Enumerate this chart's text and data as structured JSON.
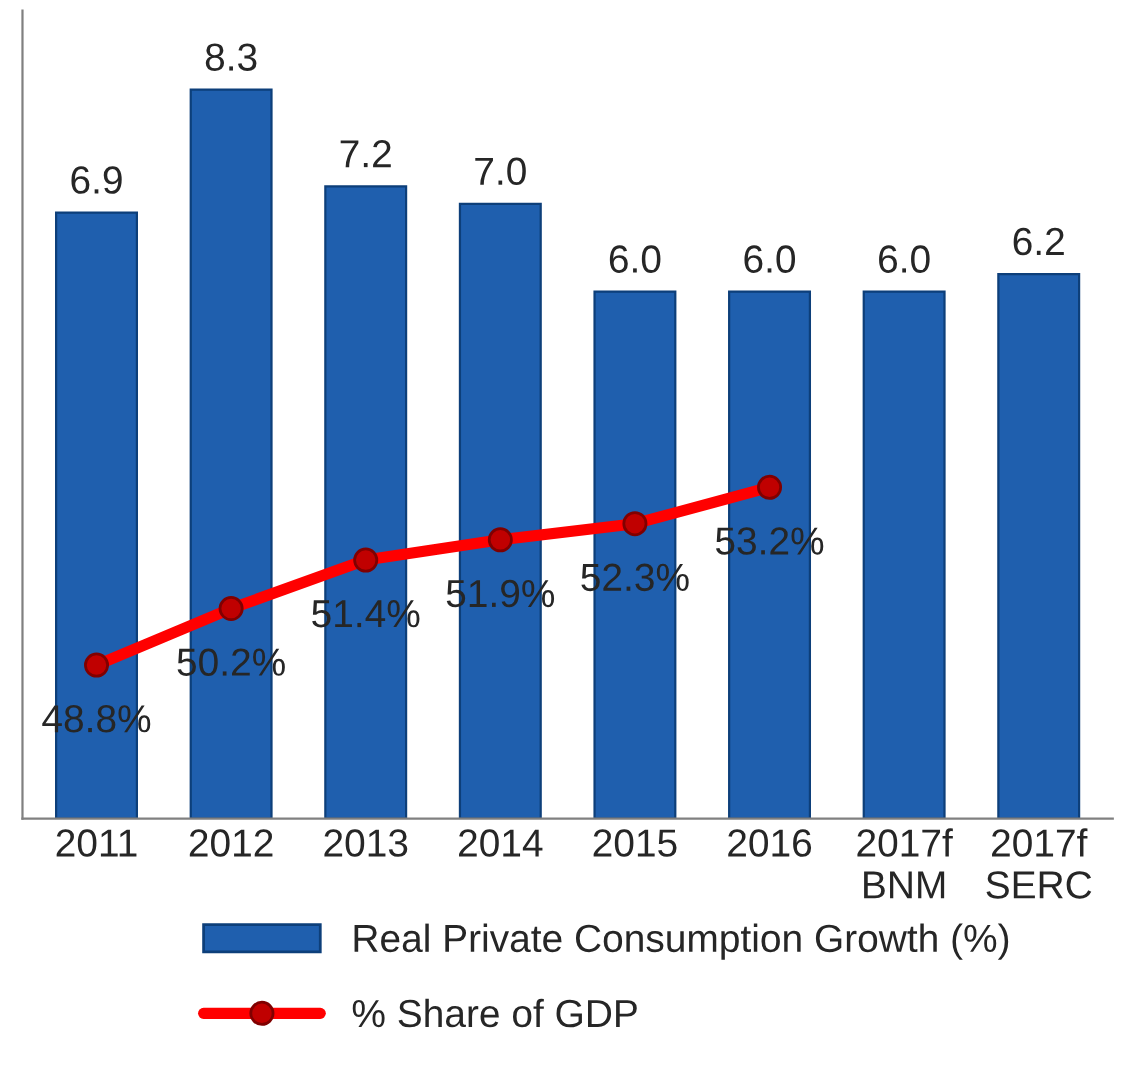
{
  "chart_data": {
    "type": "bar",
    "categories": [
      "2011",
      "2012",
      "2013",
      "2014",
      "2015",
      "2016",
      "2017f\nBNM",
      "2017f\nSERC"
    ],
    "series": [
      {
        "name": "Real Private Consumption Growth (%)",
        "color": "#1f5fae",
        "values": [
          6.9,
          8.3,
          7.2,
          7.0,
          6.0,
          6.0,
          6.0,
          6.2
        ],
        "value_labels": [
          "6.9",
          "8.3",
          "7.2",
          "7.0",
          "6.0",
          "6.0",
          "6.0",
          "6.2"
        ]
      },
      {
        "name": "% Share of GDP",
        "type": "line",
        "axis": "y2",
        "color": "#ff0000",
        "marker": "circle",
        "values": [
          48.8,
          50.2,
          51.4,
          51.9,
          52.3,
          53.2,
          null,
          null
        ],
        "value_labels": [
          "48.8%",
          "50.2%",
          "51.4%",
          "51.9%",
          "52.3%",
          "53.2%",
          null,
          null
        ]
      }
    ],
    "ylim": [
      0,
      9.2
    ],
    "y2lim": [
      45,
      65
    ],
    "tick_labels": "x",
    "grid": false,
    "legend": "bottom"
  }
}
